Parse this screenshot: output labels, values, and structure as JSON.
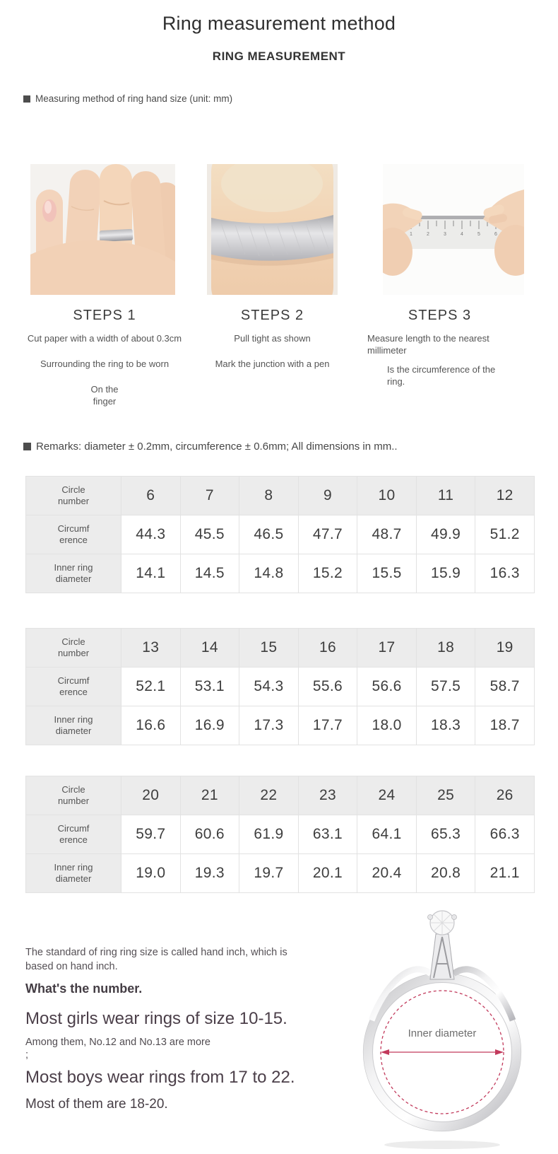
{
  "colors": {
    "accent_red": "#c23a5c",
    "text_primary": "#333333",
    "table_label_bg": "#ececec"
  },
  "header": {
    "title": "Ring measurement method",
    "subtitle": "RING MEASUREMENT",
    "note": "Measuring method of ring hand size (unit: mm)"
  },
  "steps": [
    {
      "title": "STEPS 1",
      "lines": [
        "Cut paper with a width of about 0.3cm",
        "Surrounding the ring to be worn",
        "On the finger"
      ]
    },
    {
      "title": "STEPS 2",
      "lines": [
        "Pull tight as shown",
        "Mark the junction with a pen"
      ]
    },
    {
      "title": "STEPS 3",
      "lines": [
        "Measure length to the nearest millimeter",
        "Is the circumference of the ring."
      ]
    }
  ],
  "remarks": "Remarks: diameter ± 0.2mm, circumference ± 0.6mm; All dimensions in mm..",
  "size_tables": {
    "row_labels": [
      "Circle number",
      "Circumf erence",
      "Inner ring diameter"
    ],
    "tables": [
      {
        "circle_numbers": [
          "6",
          "7",
          "8",
          "9",
          "10",
          "11",
          "12"
        ],
        "circumference": [
          "44.3",
          "45.5",
          "46.5",
          "47.7",
          "48.7",
          "49.9",
          "51.2"
        ],
        "inner_diameter": [
          "14.1",
          "14.5",
          "14.8",
          "15.2",
          "15.5",
          "15.9",
          "16.3"
        ]
      },
      {
        "circle_numbers": [
          "13",
          "14",
          "15",
          "16",
          "17",
          "18",
          "19"
        ],
        "circumference": [
          "52.1",
          "53.1",
          "54.3",
          "55.6",
          "56.6",
          "57.5",
          "58.7"
        ],
        "inner_diameter": [
          "16.6",
          "16.9",
          "17.3",
          "17.7",
          "18.0",
          "18.3",
          "18.7"
        ]
      },
      {
        "circle_numbers": [
          "20",
          "21",
          "22",
          "23",
          "24",
          "25",
          "26"
        ],
        "circumference": [
          "59.7",
          "60.6",
          "61.9",
          "63.1",
          "64.1",
          "65.3",
          "66.3"
        ],
        "inner_diameter": [
          "19.0",
          "19.3",
          "19.7",
          "20.1",
          "20.4",
          "20.8",
          "21.1"
        ]
      }
    ]
  },
  "footer": {
    "standard_text": "The standard of ring ring size is called hand inch, which is based on hand inch.",
    "whats_the_number": "What's the number.",
    "girls_line": "Most girls wear rings of size 10-15.",
    "among_line": "Among them, No.12 and No.13 are more",
    "semicolon": ";",
    "boys_line": "Most boys wear rings from 17 to 22.",
    "most_line": "Most of them are 18-20.",
    "ring_label": "Inner diameter"
  }
}
